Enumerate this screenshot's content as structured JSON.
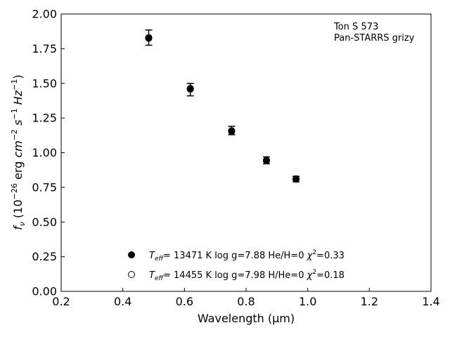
{
  "chart_data": {
    "type": "scatter",
    "title": "",
    "xlabel": "Wavelength (μm)",
    "ylabel": "f_ν (10^-26 erg cm^-2 s^-1 Hz^-1)",
    "xlim": [
      0.2,
      1.4
    ],
    "ylim": [
      0.0,
      2.0
    ],
    "x_ticks": [
      "0.2",
      "0.4",
      "0.6",
      "0.8",
      "1.0",
      "1.2",
      "1.4"
    ],
    "y_ticks": [
      "0.00",
      "0.25",
      "0.50",
      "0.75",
      "1.00",
      "1.25",
      "1.50",
      "1.75",
      "2.00"
    ],
    "tick_direction": "in",
    "grid": false,
    "annotation": {
      "object": "Ton S 573",
      "survey": "Pan-STARRS grizy"
    },
    "observed": {
      "x": [
        0.484,
        0.619,
        0.753,
        0.866,
        0.962
      ],
      "y": [
        1.83,
        1.455,
        1.16,
        0.945,
        0.81
      ],
      "yerr": [
        0.055,
        0.045,
        0.03,
        0.025,
        0.02
      ]
    },
    "series": [
      {
        "name": "Teff= 13471 K  log g=7.88  He/H=0  χ2=0.33",
        "marker": "filled-circle",
        "x": [
          0.484,
          0.619,
          0.753,
          0.866,
          0.962
        ],
        "y": [
          1.825,
          1.463,
          1.153,
          0.943,
          0.81
        ]
      },
      {
        "name": "Teff= 14455 K  log g=7.98  H/He=0  χ2=0.18",
        "marker": "open-circle",
        "x": [
          0.484,
          0.619,
          0.753,
          0.866,
          0.962
        ],
        "y": [
          1.83,
          1.458,
          1.158,
          0.945,
          0.812
        ]
      }
    ],
    "legend": {
      "placement": "lower-center",
      "entries": [
        {
          "teff": "= 13471 K",
          "logg": "log g=7.88",
          "comp": "He/H=0",
          "chi2": "=0.33"
        },
        {
          "teff": "= 14455 K",
          "logg": "log g=7.98",
          "comp": "H/He=0",
          "chi2": "=0.18"
        }
      ]
    },
    "colors": {
      "marker": "#000000",
      "open_fill": "#ffffff",
      "axis": "#000000"
    }
  }
}
